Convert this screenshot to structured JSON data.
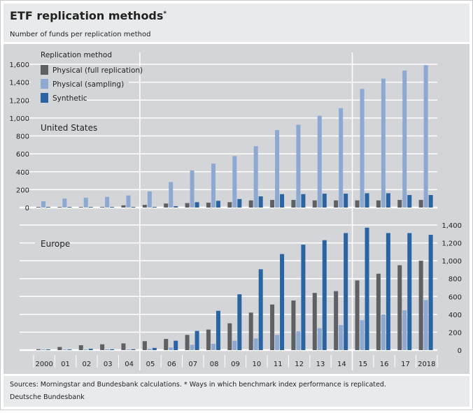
{
  "header": {
    "title": "ETF replication methods",
    "title_mark": "*",
    "subtitle": "Number of funds per replication method"
  },
  "footer": {
    "sources": "Sources: Morningstar and Bundesbank calculations. * Ways in which benchmark index performance is replicated.",
    "publisher": "Deutsche Bundesbank"
  },
  "colors": {
    "full": "#5f6064",
    "sampling": "#8da9d1",
    "synthetic": "#2a64a2",
    "panel": "#d4d5d8",
    "header": "#e9eaec"
  },
  "chart_data": [
    {
      "type": "bar",
      "title": "United States",
      "legend_title": "Replication method",
      "legend_placement": "top-left",
      "categories": [
        "2000",
        "01",
        "02",
        "03",
        "04",
        "05",
        "06",
        "07",
        "08",
        "09",
        "10",
        "11",
        "12",
        "13",
        "14",
        "15",
        "16",
        "17",
        "2018"
      ],
      "yticks": [
        "0",
        "200",
        "400",
        "600",
        "800",
        "1,000",
        "1,200",
        "1,400",
        "1,600"
      ],
      "ylim": [
        0,
        1600
      ],
      "yaxis": "left",
      "series": [
        {
          "name": "Physical (full replication)",
          "values": [
            5,
            5,
            5,
            5,
            25,
            30,
            45,
            50,
            55,
            60,
            80,
            85,
            85,
            80,
            80,
            80,
            80,
            85,
            85
          ]
        },
        {
          "name": "Physical (sampling)",
          "values": [
            70,
            100,
            110,
            120,
            135,
            180,
            285,
            415,
            490,
            575,
            685,
            865,
            925,
            1025,
            1110,
            1325,
            1440,
            1530,
            1590
          ]
        },
        {
          "name": "Synthetic",
          "values": [
            5,
            5,
            5,
            5,
            5,
            5,
            15,
            60,
            75,
            95,
            125,
            150,
            150,
            155,
            155,
            160,
            160,
            140,
            140
          ]
        }
      ]
    },
    {
      "type": "bar",
      "title": "Europe",
      "categories": [
        "2000",
        "01",
        "02",
        "03",
        "04",
        "05",
        "06",
        "07",
        "08",
        "09",
        "10",
        "11",
        "12",
        "13",
        "14",
        "15",
        "16",
        "17",
        "2018"
      ],
      "yticks": [
        "0",
        "200",
        "400",
        "600",
        "800",
        "1,000",
        "1,200",
        "1,400"
      ],
      "ylim": [
        0,
        1400
      ],
      "yaxis": "right",
      "series": [
        {
          "name": "Physical (full replication)",
          "values": [
            10,
            35,
            55,
            65,
            75,
            100,
            125,
            170,
            230,
            300,
            420,
            510,
            555,
            640,
            660,
            780,
            855,
            950,
            1000
          ]
        },
        {
          "name": "Physical (sampling)",
          "values": [
            5,
            5,
            5,
            10,
            5,
            15,
            30,
            60,
            70,
            105,
            130,
            170,
            210,
            245,
            280,
            335,
            400,
            445,
            560
          ]
        },
        {
          "name": "Synthetic",
          "values": [
            5,
            5,
            15,
            10,
            10,
            25,
            105,
            215,
            440,
            625,
            905,
            1075,
            1180,
            1230,
            1310,
            1370,
            1310,
            1310,
            1290
          ]
        }
      ]
    }
  ]
}
